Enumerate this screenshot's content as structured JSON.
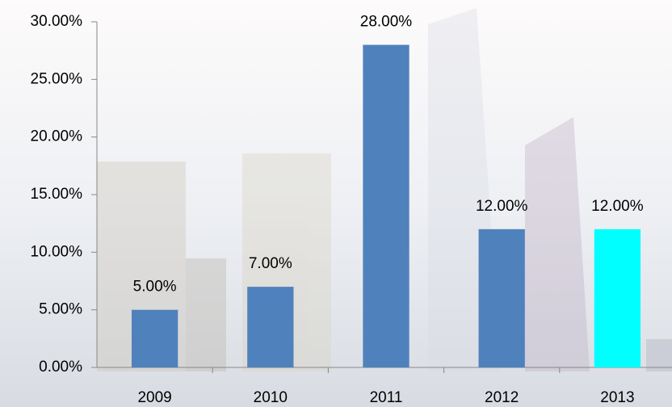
{
  "chart_data": {
    "type": "bar",
    "categories": [
      "2009",
      "2010",
      "2011",
      "2012",
      "2013"
    ],
    "values": [
      5,
      7,
      28,
      12,
      12
    ],
    "value_labels": [
      "5.00%",
      "7.00%",
      "28.00%",
      "12.00%",
      "12.00%"
    ],
    "colors": [
      "#4f81bd",
      "#4f81bd",
      "#4f81bd",
      "#4f81bd",
      "#00ffff"
    ],
    "ylim": [
      0,
      30
    ],
    "yticks": [
      {
        "value": 0,
        "label": "0.00%"
      },
      {
        "value": 5,
        "label": "5.00%"
      },
      {
        "value": 10,
        "label": "10.00%"
      },
      {
        "value": 15,
        "label": "15.00%"
      },
      {
        "value": 20,
        "label": "20.00%"
      },
      {
        "value": 25,
        "label": "25.00%"
      },
      {
        "value": 30,
        "label": "30.00%"
      }
    ],
    "grid": false
  }
}
